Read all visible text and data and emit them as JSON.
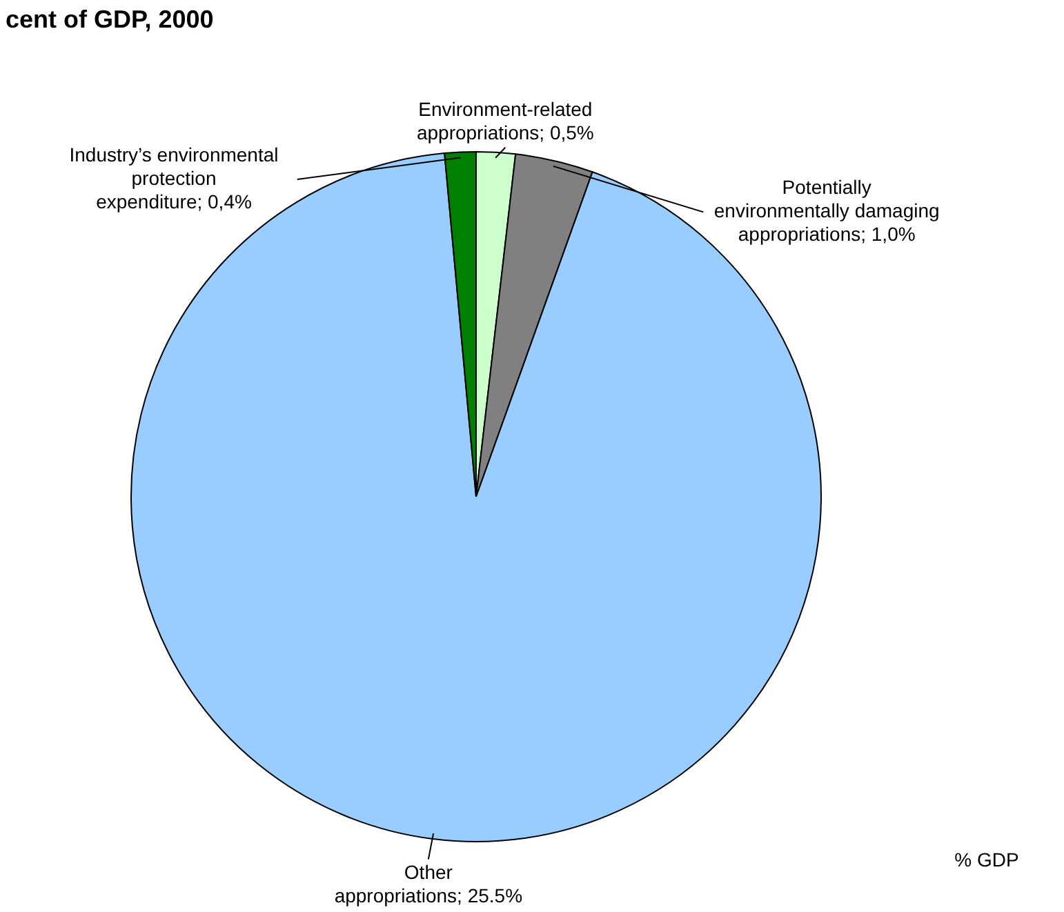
{
  "chart_data": {
    "type": "pie",
    "title": "cent of GDP, 2000",
    "categories": [
      "Environment-related appropriations",
      "Potentially environmentally damaging appropriations",
      "Other appropriations",
      "Industry’s environmental protection expenditure"
    ],
    "values": [
      0.5,
      1.0,
      25.5,
      0.4
    ],
    "value_labels": [
      "0,5%",
      "1,0%",
      "25.5%",
      "0,4%"
    ],
    "colors": [
      "#ccffcc",
      "#808080",
      "#99ccff",
      "#008000"
    ],
    "legend_title": "% GDP"
  }
}
